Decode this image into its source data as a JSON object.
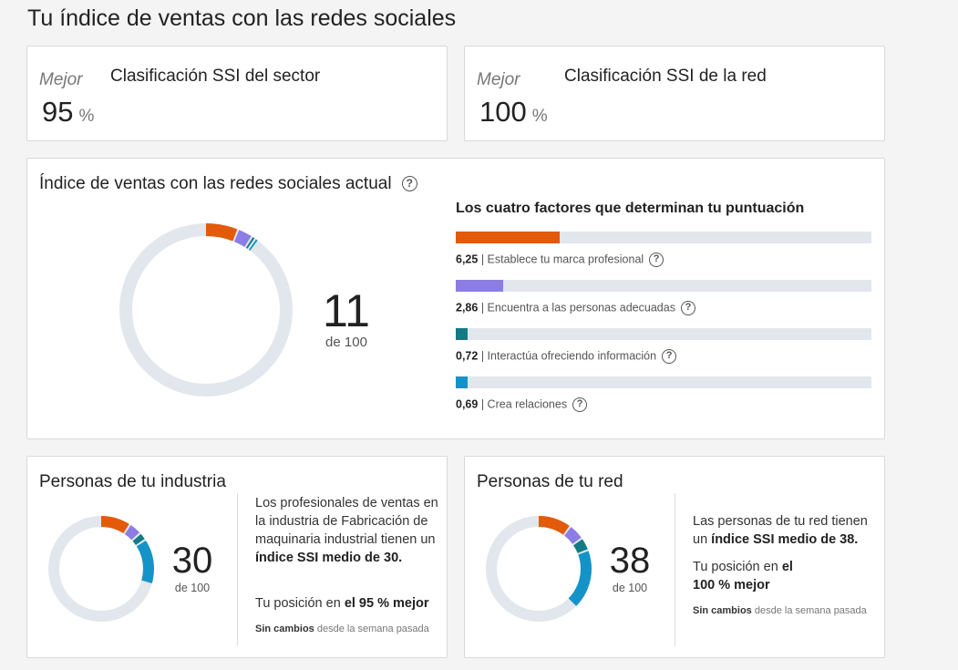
{
  "page_title": "Tu índice de ventas con las redes sociales",
  "rank_sector": {
    "label": "Mejor",
    "name": "Clasificación SSI del sector",
    "value": "95",
    "unit": "%"
  },
  "rank_network": {
    "label": "Mejor",
    "name": "Clasificación SSI de la red",
    "value": "100",
    "unit": "%"
  },
  "current": {
    "title": "Índice de ventas con las redes sociales actual",
    "score": "11",
    "out_of": "de 100",
    "factors_title": "Los cuatro factores que determinan tu puntuación",
    "factor_max": 25,
    "factors": [
      {
        "value": "6,25",
        "num": 6.25,
        "label": "| Establece tu marca profesional",
        "color": "#e35a0b"
      },
      {
        "value": "2,86",
        "num": 2.86,
        "label": "| Encuentra a las personas adecuadas",
        "color": "#8b7de3"
      },
      {
        "value": "0,72",
        "num": 0.72,
        "label": "| Interactúa ofreciendo información",
        "color": "#137b85"
      },
      {
        "value": "0,69",
        "num": 0.69,
        "label": "| Crea relaciones",
        "color": "#1493c9"
      }
    ]
  },
  "industry": {
    "title": "Personas de tu industria",
    "score": "30",
    "out_of": "de 100",
    "segments": [
      9.5,
      4,
      2.5,
      14
    ],
    "desc_pre": "Los profesionales de ventas en la industria de Fabricación de maquinaria industrial tienen un ",
    "desc_bold": "índice SSI medio de 30.",
    "pos_pre": "Tu posición en ",
    "pos_bold": "el 95 % mejor",
    "change_bold": "Sin cambios",
    "change_rest": " desde la semana pasada"
  },
  "network": {
    "title": "Personas de tu red",
    "score": "38",
    "out_of": "de 100",
    "segments": [
      10.5,
      5,
      4,
      18.5
    ],
    "desc_pre": "Las personas de tu red tienen un ",
    "desc_bold": "índice SSI medio de 38.",
    "pos_pre": "Tu posición en ",
    "pos_bold": "el 100 % mejor",
    "change_bold": "Sin cambios",
    "change_rest": " desde la semana pasada"
  },
  "colors": [
    "#e35a0b",
    "#8b7de3",
    "#137b85",
    "#1493c9"
  ],
  "track_color": "#e1e7ec"
}
